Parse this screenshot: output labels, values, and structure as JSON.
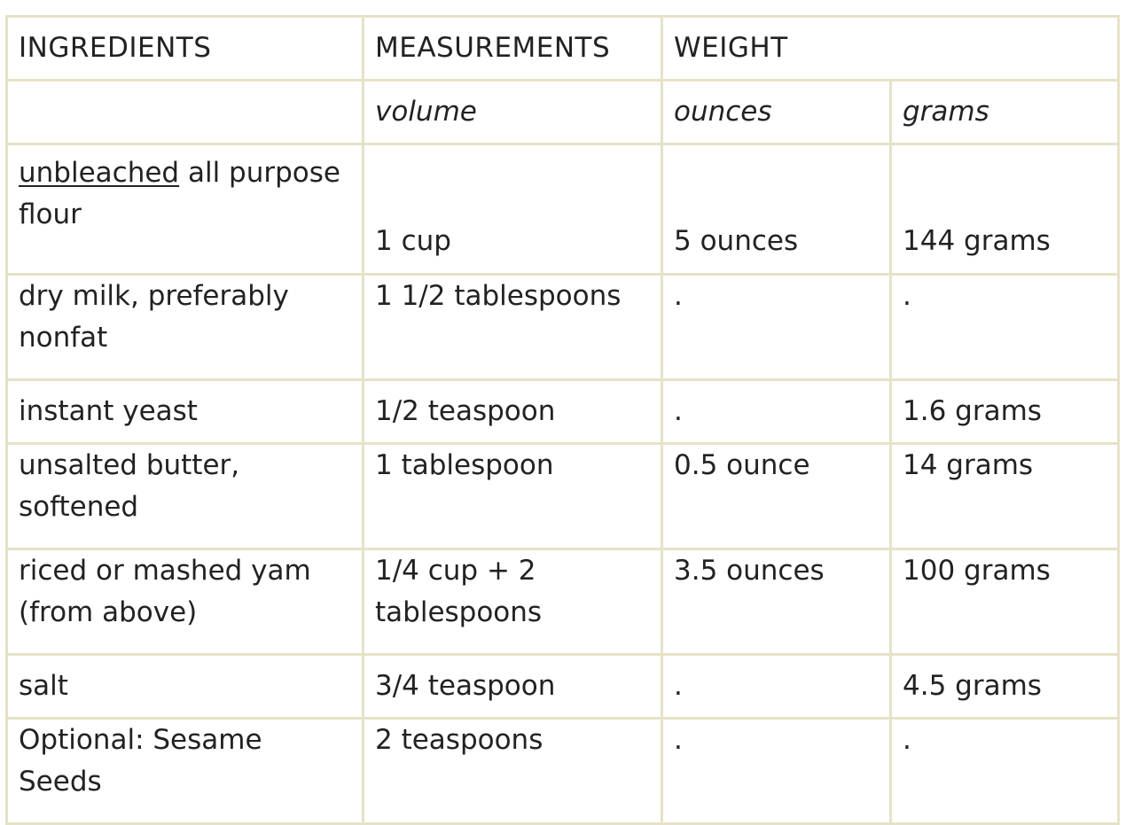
{
  "headers": {
    "ingredients": "INGREDIENTS",
    "measurements": "MEASUREMENTS",
    "weight": "WEIGHT"
  },
  "subheaders": {
    "blank": "",
    "volume": "volume",
    "ounces": "ounces",
    "grams": "grams"
  },
  "rows": [
    {
      "ingredient_link": "unbleached",
      "ingredient_rest": " all purpose flour",
      "volume": "1 cup",
      "ounces": "5 ounces",
      "grams": "144 grams"
    },
    {
      "ingredient": "dry milk, preferably nonfat",
      "volume": "1 1/2 tablespoons",
      "ounces": ".",
      "grams": "."
    },
    {
      "ingredient": "instant yeast",
      "volume": "1/2 teaspoon",
      "ounces": ".",
      "grams": "1.6 grams"
    },
    {
      "ingredient": "unsalted butter, softened",
      "volume": "1 tablespoon",
      "ounces": "0.5 ounce",
      "grams": "14 grams"
    },
    {
      "ingredient": "riced or mashed yam (from above)",
      "volume": "1/4 cup + 2 tablespoons",
      "ounces": "3.5 ounces",
      "grams": "100 grams"
    },
    {
      "ingredient": "salt",
      "volume": "3/4 teaspoon",
      "ounces": ".",
      "grams": "4.5 grams"
    },
    {
      "ingredient": "Optional: Sesame Seeds",
      "volume": "2 teaspoons",
      "ounces": ".",
      "grams": "."
    }
  ],
  "colors": {
    "border": "#e6e2c8",
    "text": "#222222"
  }
}
